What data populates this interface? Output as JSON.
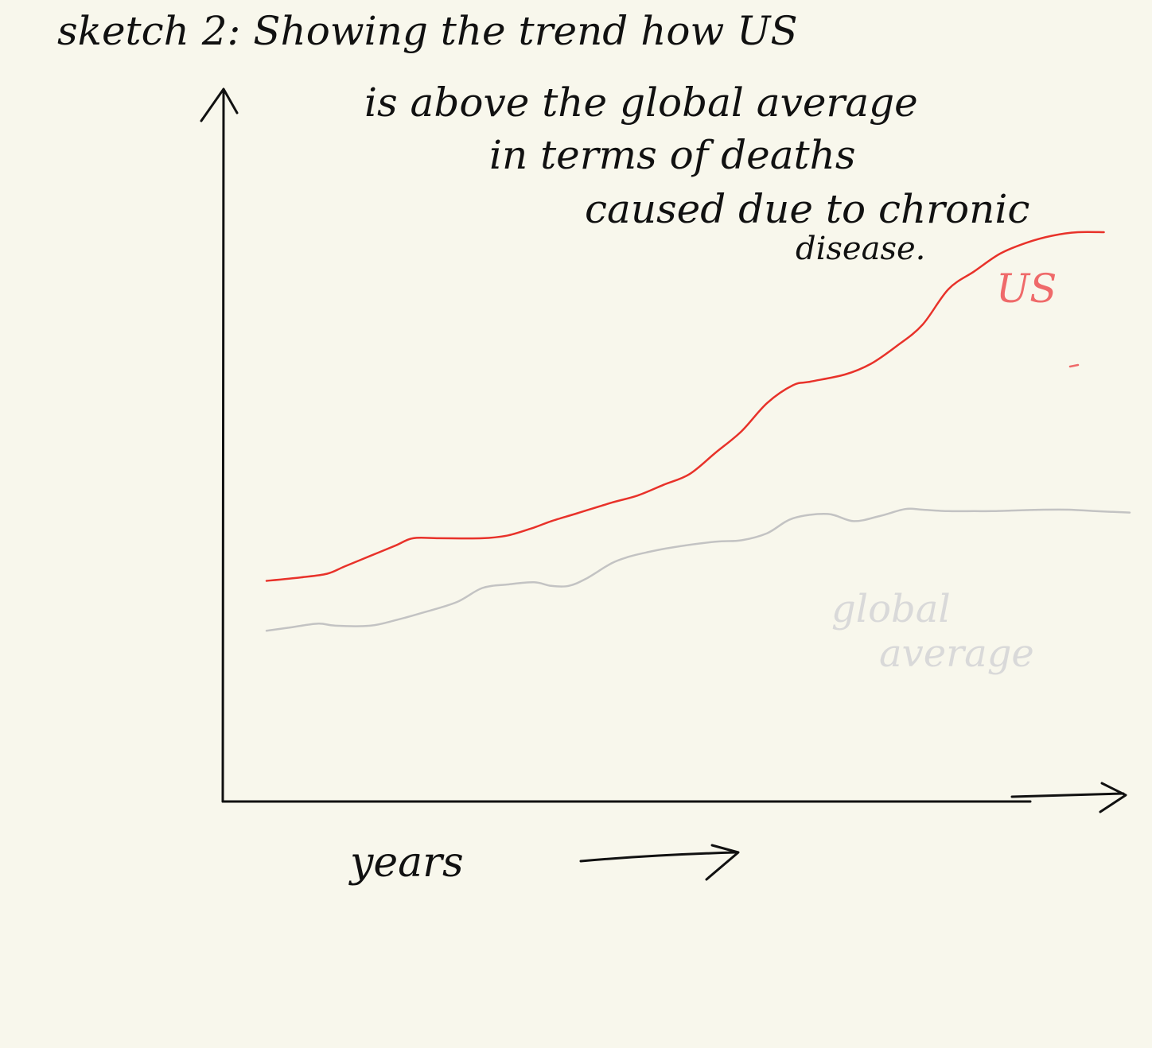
{
  "page": {
    "background": "#f8f7ec",
    "ink": "#111111"
  },
  "chart_data": {
    "type": "line",
    "title_lines": [
      "sketch 2: Showing the trend how US",
      "is above the global average",
      "in terms of deaths",
      "caused due to chronic",
      "disease."
    ],
    "xlabel": "years",
    "ylabel": "",
    "x_ticks": [],
    "y_ticks": [],
    "grid": false,
    "xlim": [
      0,
      100
    ],
    "ylim": [
      0,
      100
    ],
    "series": [
      {
        "name": "US",
        "color": "#e8322a",
        "x": [
          0,
          4,
          7,
          9,
          12,
          15,
          17,
          20,
          25,
          28,
          31,
          33,
          36,
          40,
          43,
          46,
          49,
          52,
          55,
          58,
          61,
          63,
          67,
          70,
          73,
          76,
          79,
          82,
          85,
          88,
          91,
          94,
          97
        ],
        "y": [
          31,
          31.5,
          32,
          33,
          34.5,
          36,
          37,
          37,
          37,
          37.4,
          38.5,
          39.4,
          40.5,
          42,
          43,
          44.5,
          46,
          49,
          52,
          56,
          58.5,
          59,
          60,
          61.5,
          64,
          67,
          72,
          74.5,
          77,
          78.5,
          79.5,
          80,
          80
        ]
      },
      {
        "name": "global average",
        "color": "#c3c3c3",
        "x": [
          0,
          3,
          6,
          8,
          12,
          15,
          18,
          22,
          25,
          28,
          31,
          33,
          35,
          37,
          40,
          42,
          44,
          47,
          52,
          55,
          58,
          61,
          65,
          68,
          71,
          74,
          76,
          79,
          82,
          84,
          87,
          90,
          93,
          96,
          100
        ],
        "y": [
          24,
          24.5,
          25,
          24.7,
          24.7,
          25.5,
          26.5,
          28,
          30,
          30.5,
          30.8,
          30.3,
          30.3,
          31.3,
          33.5,
          34.4,
          35,
          35.7,
          36.5,
          36.7,
          37.7,
          39.8,
          40.4,
          39.4,
          40.1,
          41.1,
          41,
          40.8,
          40.8,
          40.8,
          40.9,
          41,
          41,
          40.8,
          40.6
        ]
      }
    ],
    "annotations": [
      {
        "text": "US",
        "color": "#ef6a6a"
      },
      {
        "text": "global",
        "color": "#d9d9d9"
      },
      {
        "text": "average",
        "color": "#d9d9d9"
      }
    ]
  }
}
